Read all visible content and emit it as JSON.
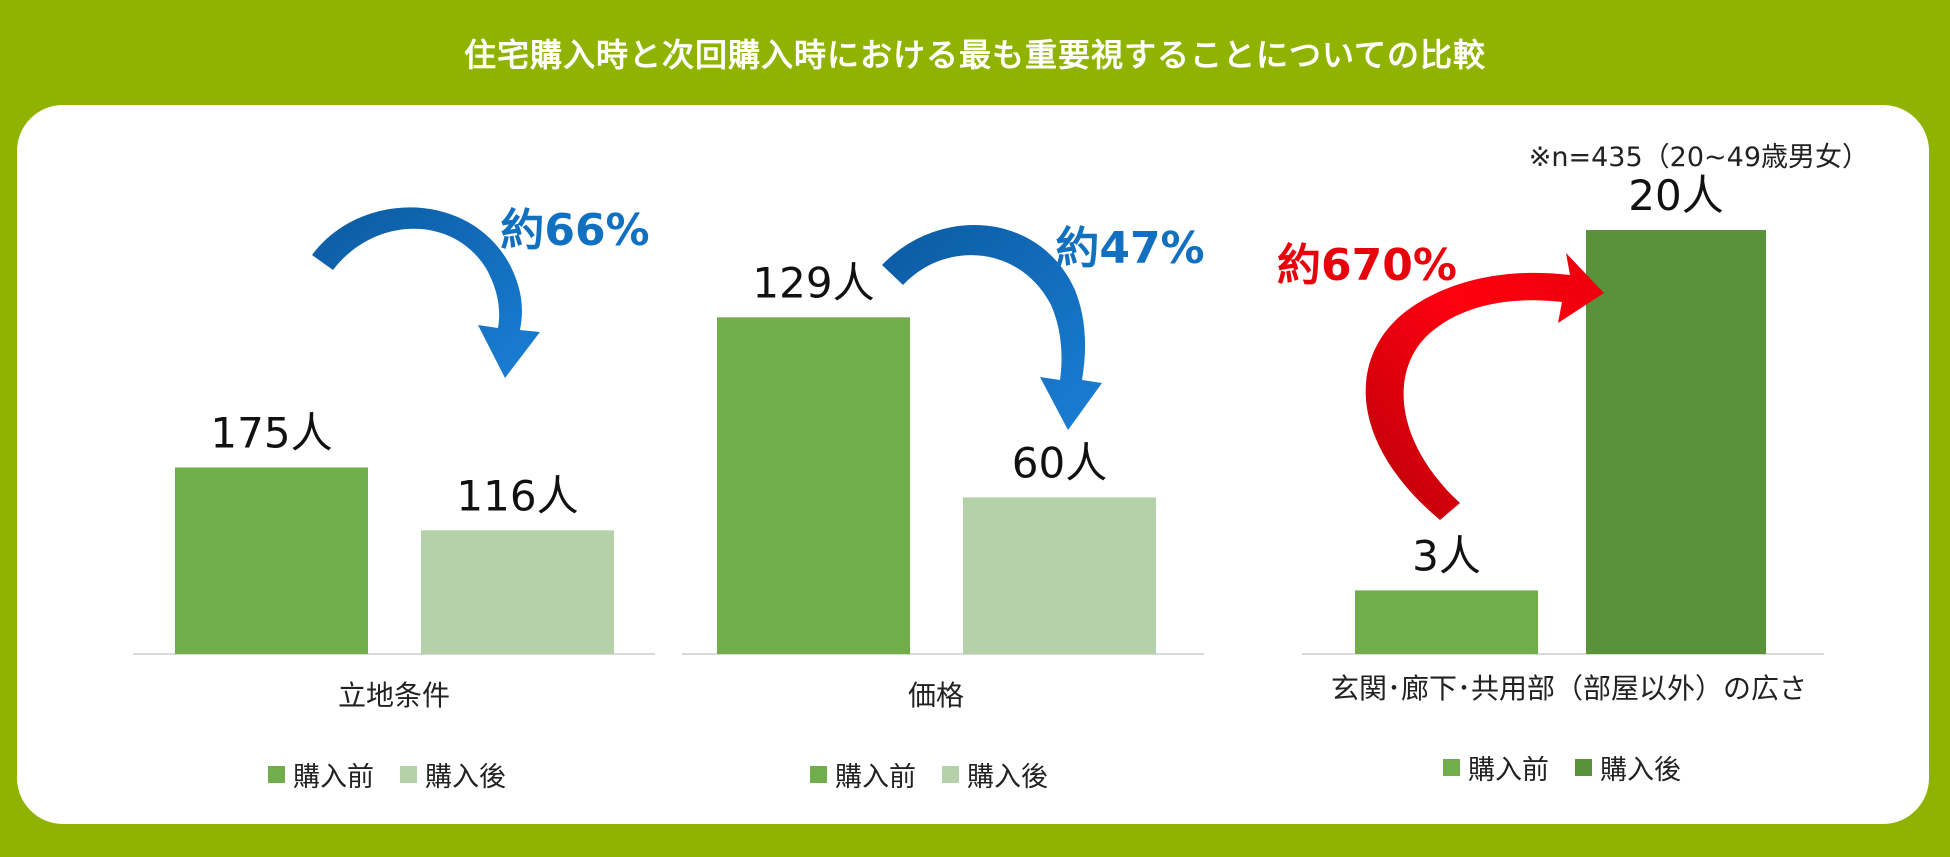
{
  "title": "住宅購入時と次回購入時における最も重要視することについての比較",
  "note": "※n=435（20~49歳男女）",
  "colors": {
    "background": "#8fb300",
    "before": "#72ad4b",
    "after_light": "#b5d1a9",
    "after_dark": "#5a923c",
    "arrow_decrease": "#1170c0",
    "arrow_increase": "#e8000b"
  },
  "chart_data": [
    {
      "type": "bar",
      "title": "",
      "categories": [
        "立地条件"
      ],
      "series": [
        {
          "name": "購入前",
          "values": [
            175
          ],
          "label": "175人"
        },
        {
          "name": "購入後",
          "values": [
            116
          ],
          "label": "116人"
        }
      ],
      "annotation": {
        "text": "約66%",
        "direction": "decrease"
      },
      "ylim": [
        0,
        200
      ]
    },
    {
      "type": "bar",
      "title": "",
      "categories": [
        "価格"
      ],
      "series": [
        {
          "name": "購入前",
          "values": [
            129
          ],
          "label": "129人"
        },
        {
          "name": "購入後",
          "values": [
            60
          ],
          "label": "60人"
        }
      ],
      "annotation": {
        "text": "約47%",
        "direction": "decrease"
      },
      "ylim": [
        0,
        150
      ]
    },
    {
      "type": "bar",
      "title": "",
      "categories": [
        "玄関･廊下･共用部（部屋以外）の広さ"
      ],
      "series": [
        {
          "name": "購入前",
          "values": [
            3
          ],
          "label": "3人"
        },
        {
          "name": "購入後",
          "values": [
            20
          ],
          "label": "20人"
        }
      ],
      "annotation": {
        "text": "約670%",
        "direction": "increase"
      },
      "ylim": [
        0,
        27
      ]
    }
  ],
  "legends": [
    {
      "before": "購入前",
      "after": "購入後"
    },
    {
      "before": "購入前",
      "after": "購入後"
    },
    {
      "before": "購入前",
      "after": "購入後"
    }
  ]
}
